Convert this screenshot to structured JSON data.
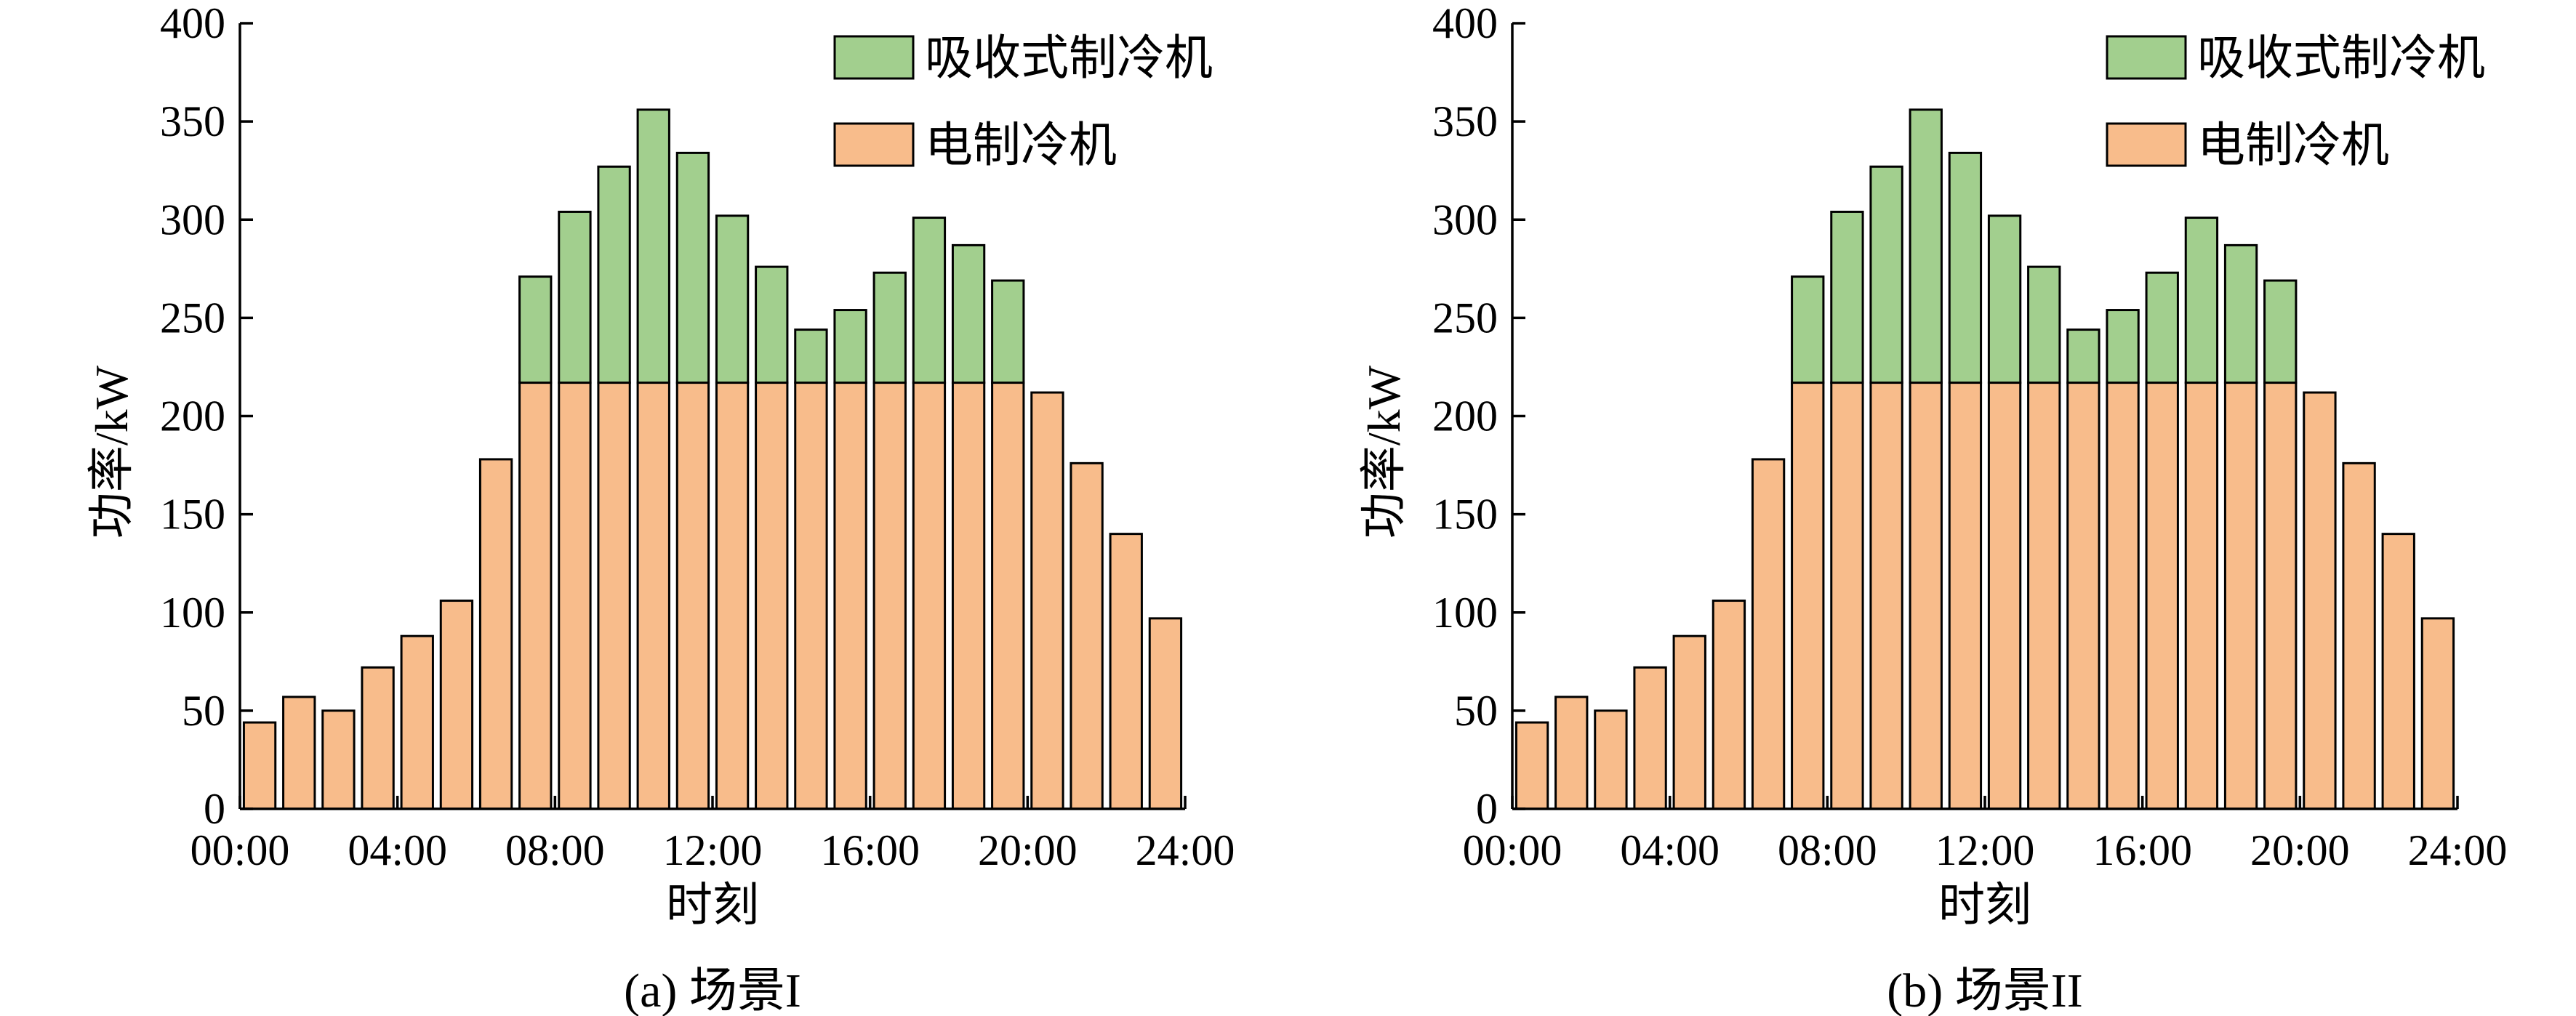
{
  "chart_data": [
    {
      "type": "bar",
      "stacked": true,
      "caption": "(a) 场景I",
      "xlabel": "时刻",
      "ylabel": "功率/kW",
      "ylim": [
        0,
        400
      ],
      "yticks": [
        0,
        50,
        100,
        150,
        200,
        250,
        300,
        350,
        400
      ],
      "xlim": [
        0,
        24
      ],
      "xticks": [
        "00:00",
        "04:00",
        "08:00",
        "12:00",
        "16:00",
        "20:00",
        "24:00"
      ],
      "x_hours": [
        1,
        2,
        3,
        4,
        5,
        6,
        7,
        8,
        9,
        10,
        11,
        12,
        13,
        14,
        15,
        16,
        17,
        18,
        19,
        20,
        21,
        22,
        23,
        24
      ],
      "grid": false,
      "legend_position": "top-right",
      "series": [
        {
          "name": "电制冷机",
          "color": "#f8bc8b",
          "values": [
            44,
            57,
            50,
            72,
            88,
            106,
            178,
            217,
            217,
            217,
            217,
            217,
            217,
            217,
            217,
            217,
            217,
            217,
            217,
            217,
            212,
            176,
            140,
            97
          ]
        },
        {
          "name": "吸收式制冷机",
          "color": "#a2cf8e",
          "values": [
            0,
            0,
            0,
            0,
            0,
            0,
            0,
            54,
            87,
            110,
            139,
            117,
            85,
            59,
            27,
            37,
            56,
            84,
            70,
            52,
            0,
            0,
            0,
            0
          ]
        }
      ],
      "legend_order": [
        "吸收式制冷机",
        "电制冷机"
      ]
    },
    {
      "type": "bar",
      "stacked": true,
      "caption": "(b) 场景II",
      "xlabel": "时刻",
      "ylabel": "功率/kW",
      "ylim": [
        0,
        400
      ],
      "yticks": [
        0,
        50,
        100,
        150,
        200,
        250,
        300,
        350,
        400
      ],
      "xlim": [
        0,
        24
      ],
      "xticks": [
        "00:00",
        "04:00",
        "08:00",
        "12:00",
        "16:00",
        "20:00",
        "24:00"
      ],
      "x_hours": [
        1,
        2,
        3,
        4,
        5,
        6,
        7,
        8,
        9,
        10,
        11,
        12,
        13,
        14,
        15,
        16,
        17,
        18,
        19,
        20,
        21,
        22,
        23,
        24
      ],
      "grid": false,
      "legend_position": "top-right",
      "series": [
        {
          "name": "电制冷机",
          "color": "#f8bc8b",
          "values": [
            44,
            57,
            50,
            72,
            88,
            106,
            178,
            217,
            217,
            217,
            217,
            217,
            217,
            217,
            217,
            217,
            217,
            217,
            217,
            217,
            212,
            176,
            140,
            97
          ]
        },
        {
          "name": "吸收式制冷机",
          "color": "#a2cf8e",
          "values": [
            0,
            0,
            0,
            0,
            0,
            0,
            0,
            54,
            87,
            110,
            139,
            117,
            85,
            59,
            27,
            37,
            56,
            84,
            70,
            52,
            0,
            0,
            0,
            0
          ]
        }
      ],
      "legend_order": [
        "吸收式制冷机",
        "电制冷机"
      ]
    }
  ]
}
